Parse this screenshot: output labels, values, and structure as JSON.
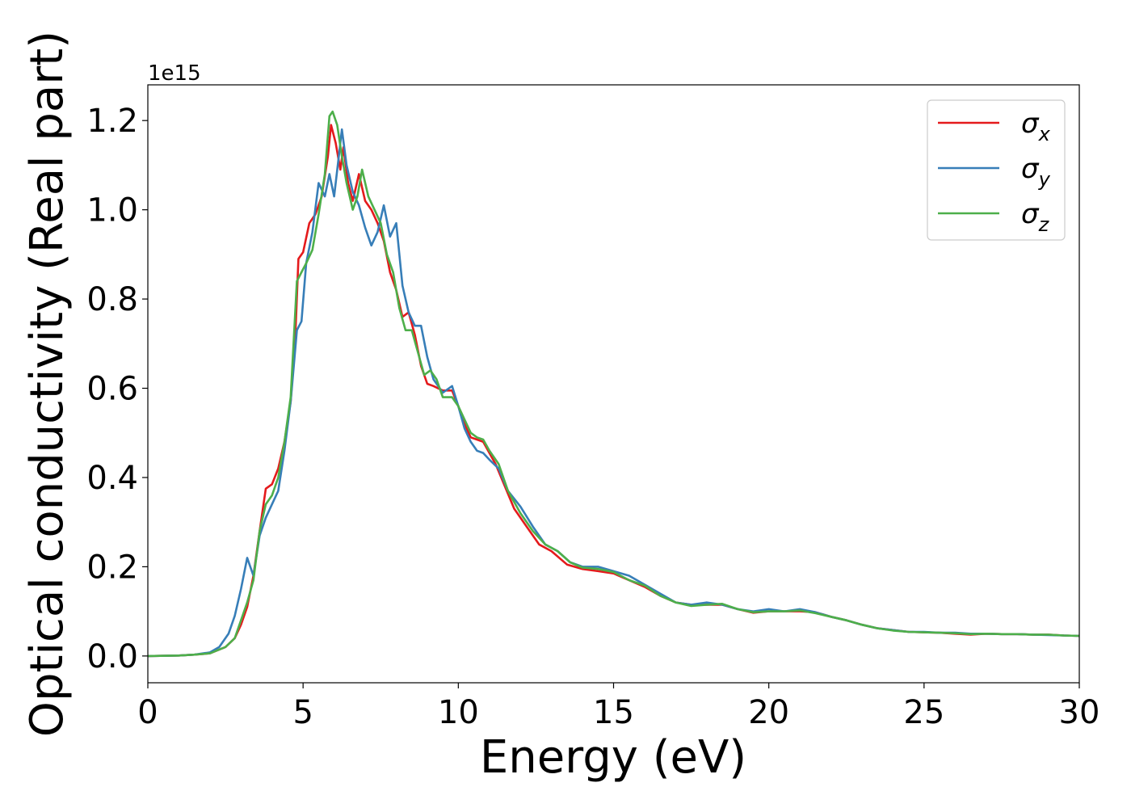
{
  "chart_data": {
    "type": "line",
    "xlabel": "Energy (eV)",
    "ylabel": "Optical conductivity (Real part)",
    "y_offset_label": "1e15",
    "xlim": [
      0,
      30
    ],
    "ylim": [
      -0.06,
      1.28
    ],
    "x_ticks": [
      0,
      5,
      10,
      15,
      20,
      25,
      30
    ],
    "x_tick_labels": [
      "0",
      "5",
      "10",
      "15",
      "20",
      "25",
      "30"
    ],
    "y_ticks": [
      0.0,
      0.2,
      0.4,
      0.6,
      0.8,
      1.0,
      1.2
    ],
    "y_tick_labels": [
      "0.0",
      "0.2",
      "0.4",
      "0.6",
      "0.8",
      "1.0",
      "1.2"
    ],
    "grid": false,
    "legend_position": "top-right",
    "series": [
      {
        "name": "σx",
        "label_base": "σ",
        "label_sub": "x",
        "color": "#e41a1c",
        "points": [
          [
            0,
            0
          ],
          [
            1,
            0.001
          ],
          [
            1.5,
            0.003
          ],
          [
            2,
            0.006
          ],
          [
            2.5,
            0.02
          ],
          [
            2.8,
            0.04
          ],
          [
            3,
            0.07
          ],
          [
            3.2,
            0.11
          ],
          [
            3.4,
            0.18
          ],
          [
            3.6,
            0.28
          ],
          [
            3.8,
            0.375
          ],
          [
            4,
            0.385
          ],
          [
            4.2,
            0.42
          ],
          [
            4.4,
            0.48
          ],
          [
            4.6,
            0.57
          ],
          [
            4.75,
            0.72
          ],
          [
            4.85,
            0.89
          ],
          [
            5,
            0.905
          ],
          [
            5.2,
            0.97
          ],
          [
            5.4,
            0.99
          ],
          [
            5.6,
            1.03
          ],
          [
            5.8,
            1.12
          ],
          [
            5.9,
            1.19
          ],
          [
            6.05,
            1.15
          ],
          [
            6.2,
            1.09
          ],
          [
            6.3,
            1.14
          ],
          [
            6.45,
            1.06
          ],
          [
            6.6,
            1.02
          ],
          [
            6.8,
            1.08
          ],
          [
            7,
            1.02
          ],
          [
            7.2,
            1.0
          ],
          [
            7.4,
            0.97
          ],
          [
            7.6,
            0.93
          ],
          [
            7.8,
            0.86
          ],
          [
            8,
            0.82
          ],
          [
            8.2,
            0.76
          ],
          [
            8.4,
            0.77
          ],
          [
            8.6,
            0.72
          ],
          [
            8.8,
            0.65
          ],
          [
            9,
            0.61
          ],
          [
            9.2,
            0.605
          ],
          [
            9.5,
            0.595
          ],
          [
            9.8,
            0.595
          ],
          [
            10,
            0.56
          ],
          [
            10.2,
            0.52
          ],
          [
            10.4,
            0.49
          ],
          [
            10.6,
            0.485
          ],
          [
            10.8,
            0.48
          ],
          [
            11,
            0.455
          ],
          [
            11.2,
            0.43
          ],
          [
            11.5,
            0.38
          ],
          [
            11.8,
            0.33
          ],
          [
            12.2,
            0.29
          ],
          [
            12.6,
            0.25
          ],
          [
            13,
            0.235
          ],
          [
            13.5,
            0.205
          ],
          [
            14,
            0.195
          ],
          [
            14.5,
            0.19
          ],
          [
            15,
            0.185
          ],
          [
            15.5,
            0.17
          ],
          [
            16,
            0.155
          ],
          [
            16.5,
            0.135
          ],
          [
            17,
            0.12
          ],
          [
            17.5,
            0.115
          ],
          [
            18,
            0.115
          ],
          [
            18.5,
            0.115
          ],
          [
            19,
            0.105
          ],
          [
            19.5,
            0.097
          ],
          [
            20,
            0.1
          ],
          [
            20.5,
            0.1
          ],
          [
            21,
            0.1
          ],
          [
            21.5,
            0.098
          ],
          [
            22,
            0.088
          ],
          [
            22.5,
            0.08
          ],
          [
            23,
            0.07
          ],
          [
            23.5,
            0.062
          ],
          [
            24,
            0.058
          ],
          [
            24.5,
            0.054
          ],
          [
            25,
            0.053
          ],
          [
            25.5,
            0.052
          ],
          [
            26,
            0.05
          ],
          [
            26.5,
            0.048
          ],
          [
            27,
            0.05
          ],
          [
            27.5,
            0.049
          ],
          [
            28,
            0.049
          ],
          [
            28.5,
            0.048
          ],
          [
            29,
            0.048
          ],
          [
            29.5,
            0.046
          ],
          [
            30,
            0.045
          ]
        ]
      },
      {
        "name": "σy",
        "label_base": "σ",
        "label_sub": "y",
        "color": "#377eb8",
        "points": [
          [
            0,
            0
          ],
          [
            1,
            0.001
          ],
          [
            1.5,
            0.003
          ],
          [
            2,
            0.008
          ],
          [
            2.3,
            0.02
          ],
          [
            2.6,
            0.05
          ],
          [
            2.8,
            0.09
          ],
          [
            3,
            0.15
          ],
          [
            3.2,
            0.22
          ],
          [
            3.4,
            0.18
          ],
          [
            3.6,
            0.27
          ],
          [
            3.8,
            0.31
          ],
          [
            4,
            0.34
          ],
          [
            4.2,
            0.37
          ],
          [
            4.4,
            0.46
          ],
          [
            4.6,
            0.57
          ],
          [
            4.8,
            0.73
          ],
          [
            4.95,
            0.75
          ],
          [
            5.1,
            0.88
          ],
          [
            5.3,
            0.95
          ],
          [
            5.5,
            1.06
          ],
          [
            5.7,
            1.03
          ],
          [
            5.85,
            1.08
          ],
          [
            6,
            1.03
          ],
          [
            6.15,
            1.12
          ],
          [
            6.25,
            1.18
          ],
          [
            6.4,
            1.1
          ],
          [
            6.6,
            1.04
          ],
          [
            6.8,
            1.01
          ],
          [
            7,
            0.96
          ],
          [
            7.2,
            0.92
          ],
          [
            7.4,
            0.95
          ],
          [
            7.6,
            1.01
          ],
          [
            7.8,
            0.94
          ],
          [
            8,
            0.97
          ],
          [
            8.2,
            0.83
          ],
          [
            8.4,
            0.77
          ],
          [
            8.6,
            0.74
          ],
          [
            8.8,
            0.74
          ],
          [
            9,
            0.67
          ],
          [
            9.2,
            0.62
          ],
          [
            9.5,
            0.59
          ],
          [
            9.8,
            0.605
          ],
          [
            10,
            0.56
          ],
          [
            10.2,
            0.51
          ],
          [
            10.4,
            0.48
          ],
          [
            10.6,
            0.46
          ],
          [
            10.8,
            0.455
          ],
          [
            11,
            0.44
          ],
          [
            11.3,
            0.42
          ],
          [
            11.6,
            0.37
          ],
          [
            12,
            0.335
          ],
          [
            12.4,
            0.29
          ],
          [
            12.8,
            0.25
          ],
          [
            13.2,
            0.235
          ],
          [
            13.6,
            0.21
          ],
          [
            14,
            0.2
          ],
          [
            14.5,
            0.2
          ],
          [
            15,
            0.19
          ],
          [
            15.5,
            0.18
          ],
          [
            16,
            0.16
          ],
          [
            16.5,
            0.14
          ],
          [
            17,
            0.12
          ],
          [
            17.5,
            0.115
          ],
          [
            18,
            0.12
          ],
          [
            18.5,
            0.115
          ],
          [
            19,
            0.105
          ],
          [
            19.5,
            0.1
          ],
          [
            20,
            0.105
          ],
          [
            20.5,
            0.1
          ],
          [
            21,
            0.105
          ],
          [
            21.5,
            0.098
          ],
          [
            22,
            0.088
          ],
          [
            22.5,
            0.08
          ],
          [
            23,
            0.07
          ],
          [
            23.5,
            0.062
          ],
          [
            24,
            0.058
          ],
          [
            24.5,
            0.054
          ],
          [
            25,
            0.054
          ],
          [
            25.5,
            0.052
          ],
          [
            26,
            0.052
          ],
          [
            26.5,
            0.05
          ],
          [
            27,
            0.05
          ],
          [
            27.5,
            0.049
          ],
          [
            28,
            0.049
          ],
          [
            28.5,
            0.048
          ],
          [
            29,
            0.047
          ],
          [
            29.5,
            0.046
          ],
          [
            30,
            0.045
          ]
        ]
      },
      {
        "name": "σz",
        "label_base": "σ",
        "label_sub": "z",
        "color": "#4daf4a",
        "points": [
          [
            0,
            0
          ],
          [
            1,
            0.001
          ],
          [
            1.5,
            0.003
          ],
          [
            2,
            0.006
          ],
          [
            2.5,
            0.02
          ],
          [
            2.8,
            0.04
          ],
          [
            3,
            0.08
          ],
          [
            3.2,
            0.12
          ],
          [
            3.4,
            0.17
          ],
          [
            3.6,
            0.28
          ],
          [
            3.8,
            0.34
          ],
          [
            4,
            0.36
          ],
          [
            4.2,
            0.4
          ],
          [
            4.4,
            0.48
          ],
          [
            4.6,
            0.58
          ],
          [
            4.8,
            0.84
          ],
          [
            4.95,
            0.86
          ],
          [
            5.1,
            0.88
          ],
          [
            5.3,
            0.91
          ],
          [
            5.5,
            0.99
          ],
          [
            5.7,
            1.08
          ],
          [
            5.85,
            1.21
          ],
          [
            5.95,
            1.22
          ],
          [
            6.1,
            1.19
          ],
          [
            6.25,
            1.12
          ],
          [
            6.4,
            1.06
          ],
          [
            6.6,
            1.0
          ],
          [
            6.75,
            1.03
          ],
          [
            6.9,
            1.09
          ],
          [
            7.1,
            1.03
          ],
          [
            7.3,
            1.0
          ],
          [
            7.5,
            0.97
          ],
          [
            7.7,
            0.9
          ],
          [
            7.9,
            0.86
          ],
          [
            8.1,
            0.78
          ],
          [
            8.3,
            0.73
          ],
          [
            8.5,
            0.73
          ],
          [
            8.7,
            0.68
          ],
          [
            8.9,
            0.63
          ],
          [
            9.1,
            0.64
          ],
          [
            9.3,
            0.62
          ],
          [
            9.5,
            0.58
          ],
          [
            9.8,
            0.58
          ],
          [
            10,
            0.56
          ],
          [
            10.2,
            0.53
          ],
          [
            10.4,
            0.5
          ],
          [
            10.6,
            0.49
          ],
          [
            10.8,
            0.485
          ],
          [
            11,
            0.46
          ],
          [
            11.3,
            0.43
          ],
          [
            11.6,
            0.37
          ],
          [
            12,
            0.32
          ],
          [
            12.4,
            0.28
          ],
          [
            12.8,
            0.25
          ],
          [
            13.2,
            0.235
          ],
          [
            13.6,
            0.21
          ],
          [
            14,
            0.198
          ],
          [
            14.5,
            0.195
          ],
          [
            15,
            0.188
          ],
          [
            15.5,
            0.17
          ],
          [
            16,
            0.158
          ],
          [
            16.5,
            0.135
          ],
          [
            17,
            0.12
          ],
          [
            17.5,
            0.112
          ],
          [
            18,
            0.115
          ],
          [
            18.5,
            0.117
          ],
          [
            19,
            0.105
          ],
          [
            19.5,
            0.098
          ],
          [
            20,
            0.1
          ],
          [
            20.5,
            0.1
          ],
          [
            21,
            0.102
          ],
          [
            21.5,
            0.096
          ],
          [
            22,
            0.088
          ],
          [
            22.5,
            0.08
          ],
          [
            23,
            0.07
          ],
          [
            23.5,
            0.062
          ],
          [
            24,
            0.057
          ],
          [
            24.5,
            0.054
          ],
          [
            25,
            0.053
          ],
          [
            25.5,
            0.052
          ],
          [
            26,
            0.051
          ],
          [
            26.5,
            0.049
          ],
          [
            27,
            0.05
          ],
          [
            27.5,
            0.049
          ],
          [
            28,
            0.049
          ],
          [
            28.5,
            0.048
          ],
          [
            29,
            0.048
          ],
          [
            29.5,
            0.046
          ],
          [
            30,
            0.045
          ]
        ]
      }
    ]
  }
}
